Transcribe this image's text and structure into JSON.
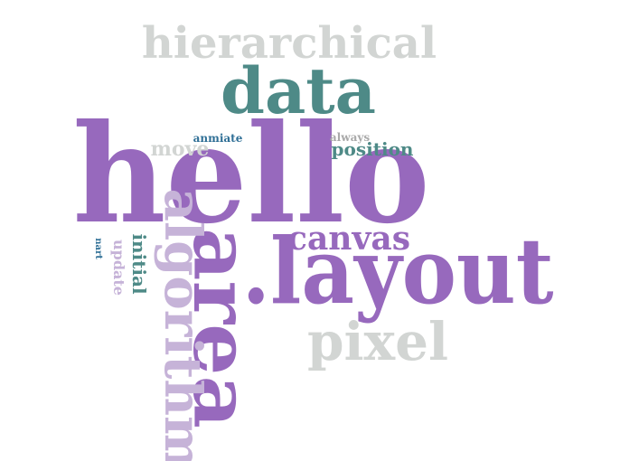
{
  "colors": {
    "purple": "#9769bd",
    "teal": "#4e8a87",
    "gray": "#d2d5d3",
    "lavender": "#c6b3d8",
    "blue": "#2f6f96"
  },
  "words": [
    {
      "text": "hierarchical",
      "color": "#d2d5d3",
      "rotate": 0
    },
    {
      "text": "data",
      "color": "#4e8a87",
      "rotate": 0
    },
    {
      "text": "hello",
      "color": "#9769bd",
      "rotate": 0
    },
    {
      "text": "move",
      "color": "#d2d5d3",
      "rotate": 0
    },
    {
      "text": "anmiate",
      "color": "#2f6f96",
      "rotate": 0
    },
    {
      "text": "always",
      "color": "#a9a9a9",
      "rotate": 0
    },
    {
      "text": "position",
      "color": "#4e8a87",
      "rotate": 0
    },
    {
      "text": "canvas",
      "color": "#9769bd",
      "rotate": 0
    },
    {
      "text": ".layout",
      "color": "#9769bd",
      "rotate": 0
    },
    {
      "text": "pixel",
      "color": "#9769bd",
      "rotate": 90
    },
    {
      "text": "area",
      "color": "#c6b3d8",
      "rotate": 90
    },
    {
      "text": "algorithm",
      "color": "#d2d5d3",
      "rotate": 0
    },
    {
      "text": "initial",
      "color": "#4e8a87",
      "rotate": 90
    },
    {
      "text": "update",
      "color": "#c6b3d8",
      "rotate": 90
    },
    {
      "text": "nart",
      "color": "#2f6f96",
      "rotate": 90
    }
  ]
}
